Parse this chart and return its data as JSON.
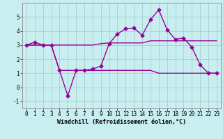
{
  "title": "",
  "xlabel": "Windchill (Refroidissement éolien,°C)",
  "ylabel": "",
  "bg_color": "#c8eef0",
  "line_color": "#990099",
  "grid_color": "#aacccc",
  "xlim": [
    -0.5,
    23.5
  ],
  "ylim": [
    -1.5,
    6.0
  ],
  "yticks": [
    -1,
    0,
    1,
    2,
    3,
    4,
    5
  ],
  "xticks": [
    0,
    1,
    2,
    3,
    4,
    5,
    6,
    7,
    8,
    9,
    10,
    11,
    12,
    13,
    14,
    15,
    16,
    17,
    18,
    19,
    20,
    21,
    22,
    23
  ],
  "line1_x": [
    0,
    1,
    2,
    3,
    4,
    5,
    6,
    7,
    8,
    9,
    10,
    11,
    12,
    13,
    14,
    15,
    16,
    17,
    18,
    19,
    20,
    21,
    22,
    23
  ],
  "line1_y": [
    3.0,
    3.2,
    3.0,
    3.0,
    1.2,
    -0.6,
    1.2,
    1.2,
    1.3,
    1.5,
    3.1,
    3.8,
    4.15,
    4.2,
    3.7,
    4.8,
    5.5,
    4.1,
    3.4,
    3.5,
    2.85,
    1.6,
    1.0,
    1.0
  ],
  "line2_x": [
    0,
    1,
    2,
    3,
    4,
    5,
    6,
    7,
    8,
    9,
    10,
    11,
    12,
    13,
    14,
    15,
    16,
    17,
    18,
    19,
    20,
    21,
    22,
    23
  ],
  "line2_y": [
    3.0,
    3.0,
    3.0,
    3.0,
    3.0,
    3.0,
    3.0,
    3.0,
    3.0,
    3.1,
    3.15,
    3.15,
    3.15,
    3.15,
    3.15,
    3.3,
    3.3,
    3.3,
    3.3,
    3.3,
    3.3,
    3.3,
    3.3,
    3.3
  ],
  "line3_x": [
    0,
    1,
    2,
    3,
    4,
    5,
    6,
    7,
    8,
    9,
    10,
    11,
    12,
    13,
    14,
    15,
    16,
    17,
    18,
    19,
    20,
    21,
    22,
    23
  ],
  "line3_y": [
    3.0,
    3.0,
    3.0,
    3.0,
    1.2,
    1.2,
    1.2,
    1.2,
    1.2,
    1.2,
    1.2,
    1.2,
    1.2,
    1.2,
    1.2,
    1.2,
    1.0,
    1.0,
    1.0,
    1.0,
    1.0,
    1.0,
    1.0,
    1.0
  ],
  "marker": "D",
  "markersize": 2.5,
  "linewidth": 1.0,
  "tick_fontsize": 5.5,
  "label_fontsize": 6.0
}
